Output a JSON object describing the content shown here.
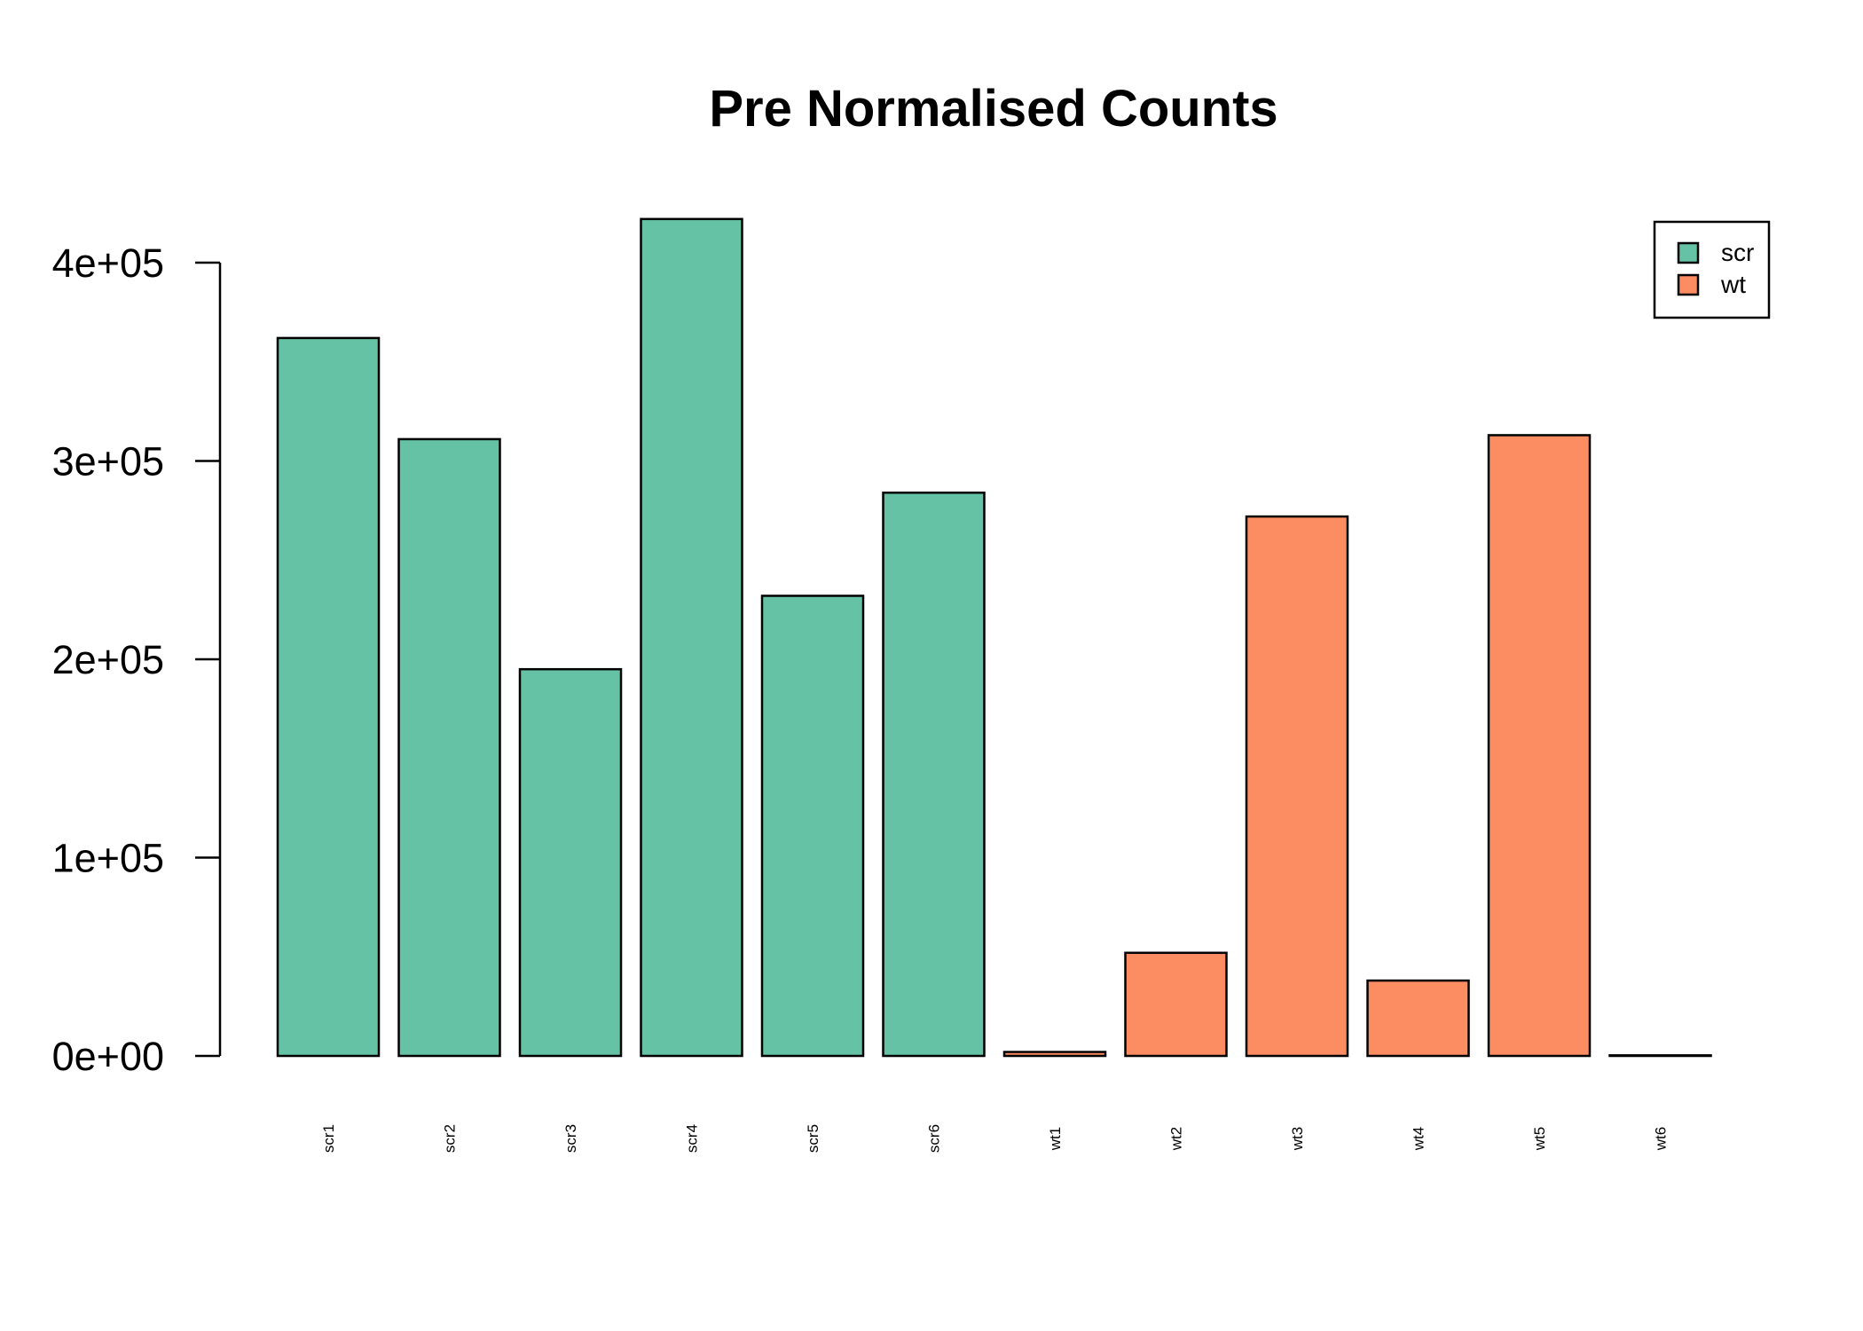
{
  "chart_data": {
    "type": "bar",
    "title": "Pre Normalised Counts",
    "xlabel": "",
    "ylabel": "",
    "categories": [
      "scr1",
      "scr2",
      "scr3",
      "scr4",
      "scr5",
      "scr6",
      "wt1",
      "wt2",
      "wt3",
      "wt4",
      "wt5",
      "wt6"
    ],
    "values": [
      362000,
      311000,
      195000,
      422000,
      232000,
      284000,
      2000,
      52000,
      272000,
      38000,
      313000,
      300
    ],
    "groups": [
      "scr",
      "scr",
      "scr",
      "scr",
      "scr",
      "scr",
      "wt",
      "wt",
      "wt",
      "wt",
      "wt",
      "wt"
    ],
    "ylim": [
      0,
      400000
    ],
    "yticks": [
      0,
      100000,
      200000,
      300000,
      400000
    ],
    "ytick_labels": [
      "0e+00",
      "1e+05",
      "2e+05",
      "3e+05",
      "4e+05"
    ],
    "x_tick_labels_rotated": true,
    "grid": false,
    "legend": {
      "placement": "top-right",
      "entries": [
        {
          "label": "scr",
          "color": "#66c2a5"
        },
        {
          "label": "wt",
          "color": "#fc8d62"
        }
      ]
    },
    "colors": {
      "scr": "#66c2a5",
      "wt": "#fc8d62",
      "outline": "#000000"
    }
  }
}
